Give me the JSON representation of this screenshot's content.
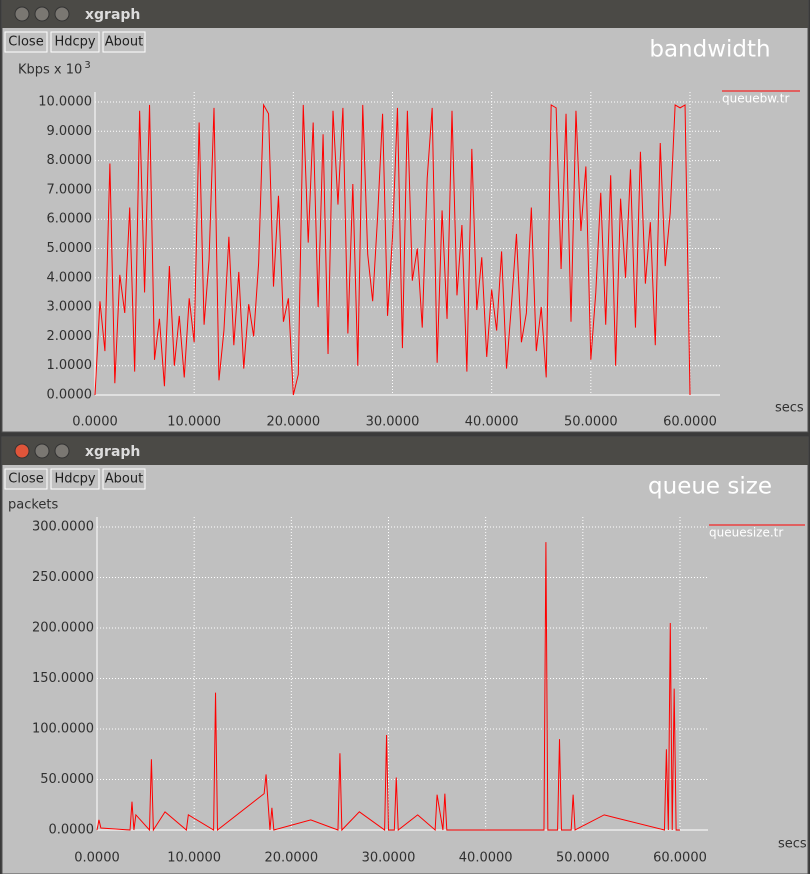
{
  "windows": [
    {
      "title": "xgraph",
      "buttons": [
        "Close",
        "Hdcpy",
        "About"
      ]
    },
    {
      "title": "xgraph",
      "buttons": [
        "Close",
        "Hdcpy",
        "About"
      ]
    }
  ],
  "chart_data": [
    {
      "type": "line",
      "title": "bandwidth",
      "ylabel": "Kbps x 10",
      "ylabel_exponent": "3",
      "xlabel": "secs",
      "x": [
        0,
        0.5,
        1,
        1.5,
        2,
        2.5,
        3,
        3.5,
        4,
        4.5,
        5,
        5.5,
        6,
        6.5,
        7,
        7.5,
        8,
        8.5,
        9,
        9.5,
        10,
        10.5,
        11,
        11.5,
        12,
        12.5,
        13,
        13.5,
        14,
        14.5,
        15,
        15.5,
        16,
        16.5,
        17,
        17.5,
        18,
        18.5,
        19,
        19.5,
        20,
        20.5,
        21,
        21.5,
        22,
        22.5,
        23,
        23.5,
        24,
        24.5,
        25,
        25.5,
        26,
        26.5,
        27,
        27.5,
        28,
        28.5,
        29,
        29.5,
        30,
        30.5,
        31,
        31.5,
        32,
        32.5,
        33,
        33.5,
        34,
        34.5,
        35,
        35.5,
        36,
        36.5,
        37,
        37.5,
        38,
        38.5,
        39,
        39.5,
        40,
        40.5,
        41,
        41.5,
        42,
        42.5,
        43,
        43.5,
        44,
        44.5,
        45,
        45.5,
        46,
        46.5,
        47,
        47.5,
        48,
        48.5,
        49,
        49.5,
        50,
        50.5,
        51,
        51.5,
        52,
        52.5,
        53,
        53.5,
        54,
        54.5,
        55,
        55.5,
        56,
        56.5,
        57,
        57.5,
        58,
        58.5,
        59,
        59.5,
        60
      ],
      "series": [
        {
          "name": "queuebw.tr",
          "color": "#ff0000",
          "values": [
            0,
            3.2,
            1.5,
            7.9,
            0.4,
            4.1,
            2.8,
            6.4,
            0.8,
            9.7,
            3.5,
            9.9,
            1.2,
            2.6,
            0.3,
            4.4,
            1.0,
            2.7,
            0.6,
            3.3,
            1.8,
            9.3,
            2.4,
            4.6,
            9.8,
            0.5,
            2.2,
            5.4,
            1.7,
            4.2,
            0.9,
            3.1,
            2.0,
            4.5,
            9.9,
            9.6,
            3.7,
            6.8,
            2.5,
            3.3,
            0,
            0.7,
            9.9,
            5.2,
            9.3,
            3.0,
            8.9,
            1.4,
            9.7,
            6.5,
            9.8,
            2.1,
            7.2,
            1.0,
            9.9,
            4.8,
            3.2,
            6.1,
            9.6,
            2.7,
            5.4,
            9.8,
            1.6,
            9.7,
            3.9,
            5.0,
            2.3,
            7.4,
            9.8,
            1.1,
            6.3,
            2.6,
            9.7,
            3.4,
            5.8,
            0.8,
            8.4,
            2.9,
            4.7,
            1.3,
            3.6,
            2.2,
            4.9,
            0.9,
            3.1,
            5.5,
            1.8,
            2.8,
            6.4,
            1.5,
            3.0,
            0.6,
            9.9,
            9.8,
            4.3,
            9.6,
            2.5,
            9.7,
            5.6,
            7.8,
            1.2,
            3.5,
            6.9,
            2.4,
            7.5,
            1.0,
            6.7,
            4.0,
            7.7,
            2.3,
            8.3,
            3.8,
            5.9,
            1.7,
            8.6,
            4.4,
            6.2,
            9.9,
            9.8,
            9.9,
            0
          ]
        }
      ],
      "xlim": [
        0,
        60
      ],
      "ylim": [
        0,
        10
      ],
      "xticks": [
        {
          "value": 0,
          "label": "0.0000"
        },
        {
          "value": 10,
          "label": "10.0000"
        },
        {
          "value": 20,
          "label": "20.0000"
        },
        {
          "value": 30,
          "label": "30.0000"
        },
        {
          "value": 40,
          "label": "40.0000"
        },
        {
          "value": 50,
          "label": "50.0000"
        },
        {
          "value": 60,
          "label": "60.0000"
        }
      ],
      "yticks": [
        {
          "value": 0,
          "label": "0.0000"
        },
        {
          "value": 1,
          "label": "1.0000"
        },
        {
          "value": 2,
          "label": "2.0000"
        },
        {
          "value": 3,
          "label": "3.0000"
        },
        {
          "value": 4,
          "label": "4.0000"
        },
        {
          "value": 5,
          "label": "5.0000"
        },
        {
          "value": 6,
          "label": "6.0000"
        },
        {
          "value": 7,
          "label": "7.0000"
        },
        {
          "value": 8,
          "label": "8.0000"
        },
        {
          "value": 9,
          "label": "9.0000"
        },
        {
          "value": 10,
          "label": "10.0000"
        }
      ],
      "grid": true
    },
    {
      "type": "line",
      "title": "queue size",
      "ylabel": "packets",
      "xlabel": "secs",
      "x": [
        0,
        0.2,
        0.4,
        3.4,
        3.6,
        3.8,
        4.0,
        5.4,
        5.6,
        5.8,
        7.0,
        9.2,
        9.4,
        12.0,
        12.2,
        12.4,
        17.2,
        17.4,
        17.8,
        18.0,
        18.2,
        22.0,
        24.8,
        25.0,
        25.2,
        27.0,
        29.6,
        29.8,
        30.0,
        30.6,
        30.8,
        31.0,
        33.0,
        34.8,
        35.0,
        35.6,
        35.8,
        36.0,
        46.0,
        46.2,
        46.4,
        46.6,
        47.4,
        47.6,
        47.8,
        48.8,
        49.0,
        49.2,
        52.2,
        53.4,
        58.4,
        58.6,
        58.8,
        59.0,
        59.2,
        59.4,
        59.6,
        60.0
      ],
      "series": [
        {
          "name": "queuesize.tr",
          "color": "#ff0000",
          "values": [
            0,
            10,
            2,
            0,
            28,
            0,
            15,
            0,
            70,
            0,
            18,
            0,
            15,
            0,
            136,
            0,
            36,
            55,
            0,
            22,
            0,
            10,
            0,
            76,
            0,
            18,
            0,
            94,
            0,
            0,
            52,
            0,
            15,
            0,
            35,
            0,
            36,
            0,
            0,
            285,
            0,
            0,
            0,
            90,
            0,
            0,
            35,
            0,
            15,
            12,
            0,
            80,
            0,
            205,
            0,
            140,
            0,
            0
          ]
        }
      ],
      "xlim": [
        0,
        60
      ],
      "ylim": [
        0,
        300
      ],
      "xticks": [
        {
          "value": 0,
          "label": "0.0000"
        },
        {
          "value": 10,
          "label": "10.0000"
        },
        {
          "value": 20,
          "label": "20.0000"
        },
        {
          "value": 30,
          "label": "30.0000"
        },
        {
          "value": 40,
          "label": "40.0000"
        },
        {
          "value": 50,
          "label": "50.0000"
        },
        {
          "value": 60,
          "label": "60.0000"
        }
      ],
      "yticks": [
        {
          "value": 0,
          "label": "0.0000"
        },
        {
          "value": 50,
          "label": "50.0000"
        },
        {
          "value": 100,
          "label": "100.0000"
        },
        {
          "value": 150,
          "label": "150.0000"
        },
        {
          "value": 200,
          "label": "200.0000"
        },
        {
          "value": 250,
          "label": "250.0000"
        },
        {
          "value": 300,
          "label": "300.0000"
        }
      ],
      "grid": true
    }
  ]
}
